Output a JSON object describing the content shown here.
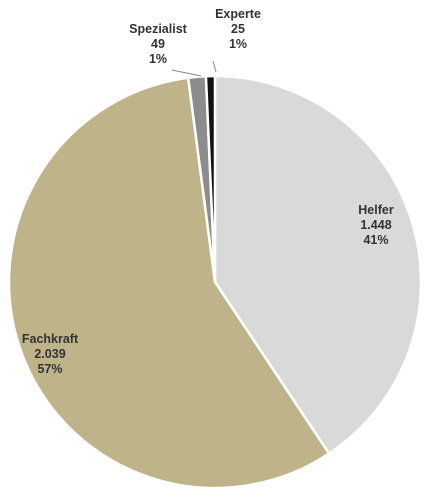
{
  "chart_data": {
    "type": "pie",
    "title": "",
    "legend": "none",
    "slices": [
      {
        "name": "Helfer",
        "value": 1448,
        "value_label": "1.448",
        "percent_label": "41%",
        "color": "#d9d9d9"
      },
      {
        "name": "Fachkraft",
        "value": 2039,
        "value_label": "2.039",
        "percent_label": "57%",
        "color": "#bfb38a"
      },
      {
        "name": "Spezialist",
        "value": 49,
        "value_label": "49",
        "percent_label": "1%",
        "color": "#8c8c8c"
      },
      {
        "name": "Experte",
        "value": 25,
        "value_label": "25",
        "percent_label": "1%",
        "color": "#111111"
      }
    ]
  }
}
